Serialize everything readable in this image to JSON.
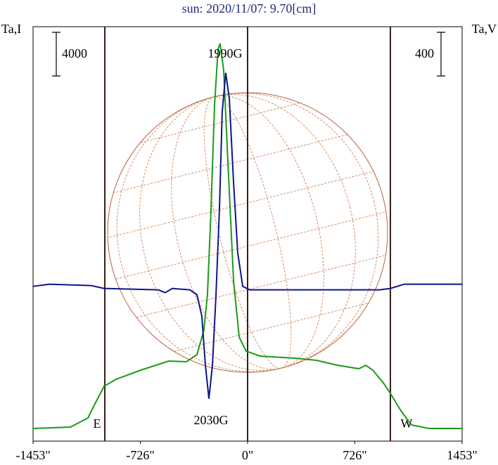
{
  "chart_data": {
    "type": "line",
    "title": "sun: 2020/11/07: 9.70[cm]",
    "y_label": "Ta,I",
    "y2_label": "Ta,V",
    "xlim": [
      -1453,
      1453
    ],
    "xticks": [
      {
        "value": -1453,
        "label": "-1453\""
      },
      {
        "value": -726,
        "label": "-726\""
      },
      {
        "value": 0,
        "label": "0\""
      },
      {
        "value": 726,
        "label": "726\""
      },
      {
        "value": 1453,
        "label": "1453\""
      }
    ],
    "ylim": [
      0,
      38000
    ],
    "y2lim": [
      -1400,
      2400
    ],
    "limb_lines": [
      -967,
      0,
      967
    ],
    "limb_color": "#3a1c1c",
    "scale_bars": [
      {
        "axis": "y",
        "value": 4000
      },
      {
        "axis": "y2",
        "value": 400
      }
    ],
    "annotations": [
      "1990G",
      "2030G",
      "E",
      "W"
    ],
    "series": [
      {
        "name": "I",
        "color": "#1a9a1a",
        "x": [
          -1453,
          -1200,
          -1081,
          -1034,
          -972,
          -891,
          -724,
          -534,
          -415,
          -343,
          -296,
          -272,
          -248,
          -224,
          -200,
          -186,
          -162,
          -129,
          -95,
          -57,
          -10,
          86,
          324,
          467,
          610,
          753,
          800,
          848,
          919,
          967,
          1039,
          1110,
          1229,
          1453
        ],
        "values": [
          1159,
          1288,
          2126,
          3414,
          5024,
          5668,
          6505,
          7343,
          7278,
          7922,
          10177,
          13397,
          21126,
          30788,
          35941,
          36456,
          34008,
          24347,
          14685,
          9532,
          8244,
          7793,
          7600,
          7407,
          6956,
          6634,
          6956,
          6505,
          5346,
          4380,
          2770,
          1481,
          1159,
          1159
        ]
      },
      {
        "name": "V",
        "color": "#10148c",
        "axis": "y2",
        "x": [
          -1453,
          -1343,
          -1058,
          -972,
          -605,
          -558,
          -510,
          -391,
          -343,
          -310,
          -286,
          -262,
          -238,
          -214,
          -191,
          -172,
          -148,
          -124,
          -95,
          -67,
          -33,
          14,
          467,
          895,
          967,
          1062,
          1453
        ],
        "values": [
          19,
          39,
          26,
          0,
          -13,
          -39,
          0,
          -13,
          -58,
          -251,
          -702,
          -1011,
          -702,
          -58,
          715,
          1616,
          1977,
          1745,
          972,
          328,
          19,
          -13,
          -13,
          -13,
          0,
          39,
          39
        ]
      }
    ]
  }
}
